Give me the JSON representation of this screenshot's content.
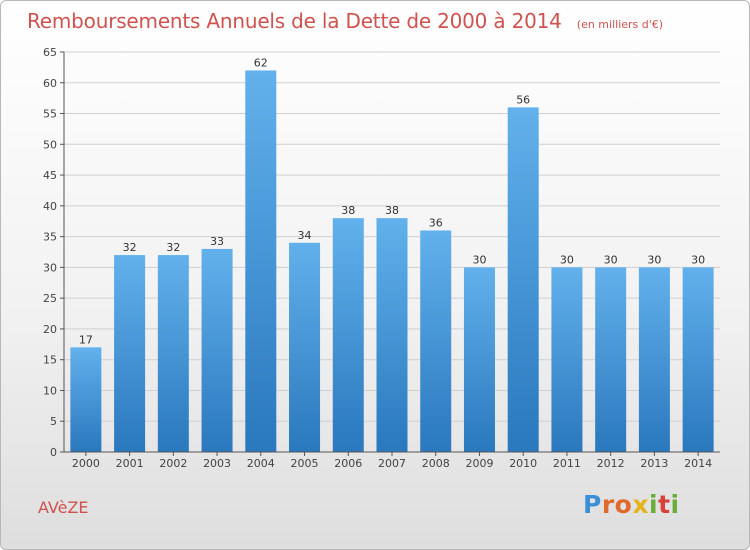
{
  "chart_data": {
    "type": "bar",
    "title": "Remboursements Annuels de la Dette de 2000 à 2014",
    "unit_note": "(en milliers d'€)",
    "categories": [
      "2000",
      "2001",
      "2002",
      "2003",
      "2004",
      "2005",
      "2006",
      "2007",
      "2008",
      "2009",
      "2010",
      "2011",
      "2012",
      "2013",
      "2014"
    ],
    "values": [
      17,
      32,
      32,
      33,
      62,
      34,
      38,
      38,
      36,
      30,
      56,
      30,
      30,
      30,
      30
    ],
    "ylim": [
      0,
      65
    ],
    "yticks": [
      0,
      5,
      10,
      15,
      20,
      25,
      30,
      35,
      40,
      45,
      50,
      55,
      60,
      65
    ],
    "grid": true,
    "data_labels": true,
    "bar_color": "#3d94d8"
  },
  "footer": {
    "commune": "AVèZE"
  },
  "brand": {
    "name": "Proxiti",
    "colors": [
      "#3a8fd6",
      "#e06a2c",
      "#e6b31e",
      "#6aae3a",
      "#d9413b"
    ]
  }
}
